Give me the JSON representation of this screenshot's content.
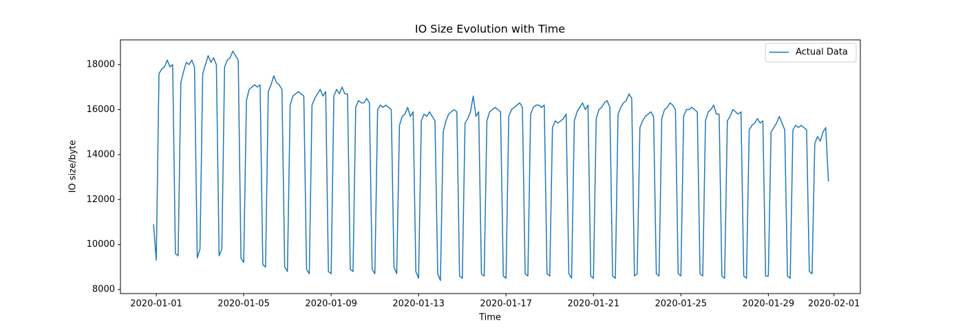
{
  "chart_data": {
    "type": "line",
    "title": "IO Size Evolution with Time",
    "x_label": "Time",
    "y_label": "IO size/byte",
    "xlim": [
      "2019-12-30 08:40",
      "2020-02-02 05:00"
    ],
    "xticks": [
      "2020-01-01",
      "2020-01-05",
      "2020-01-09",
      "2020-01-13",
      "2020-01-17",
      "2020-01-21",
      "2020-01-25",
      "2020-01-29",
      "2020-02-01"
    ],
    "ylim": [
      7820,
      19100
    ],
    "yticks": [
      8000,
      10000,
      12000,
      14000,
      16000,
      18000
    ],
    "legend": "upper right",
    "x": [
      "2019-12-31 21:00",
      "2020-01-01 00:00",
      "2020-01-01 03:00",
      "2020-01-01 06:00",
      "2020-01-01 09:00",
      "2020-01-01 12:00",
      "2020-01-01 15:00",
      "2020-01-01 18:00",
      "2020-01-01 21:00",
      "2020-01-02 00:00",
      "2020-01-02 03:00",
      "2020-01-02 06:00",
      "2020-01-02 09:00",
      "2020-01-02 12:00",
      "2020-01-02 15:00",
      "2020-01-02 18:00",
      "2020-01-02 21:00",
      "2020-01-03 00:00",
      "2020-01-03 03:00",
      "2020-01-03 06:00",
      "2020-01-03 09:00",
      "2020-01-03 12:00",
      "2020-01-03 15:00",
      "2020-01-03 18:00",
      "2020-01-03 21:00",
      "2020-01-04 00:00",
      "2020-01-04 03:00",
      "2020-01-04 06:00",
      "2020-01-04 09:00",
      "2020-01-04 12:00",
      "2020-01-04 15:00",
      "2020-01-04 18:00",
      "2020-01-04 21:00",
      "2020-01-05 00:00",
      "2020-01-05 03:00",
      "2020-01-05 06:00",
      "2020-01-05 09:00",
      "2020-01-05 12:00",
      "2020-01-05 15:00",
      "2020-01-05 18:00",
      "2020-01-05 21:00",
      "2020-01-06 00:00",
      "2020-01-06 03:00",
      "2020-01-06 06:00",
      "2020-01-06 09:00",
      "2020-01-06 12:00",
      "2020-01-06 15:00",
      "2020-01-06 18:00",
      "2020-01-06 21:00",
      "2020-01-07 00:00",
      "2020-01-07 03:00",
      "2020-01-07 06:00",
      "2020-01-07 09:00",
      "2020-01-07 12:00",
      "2020-01-07 15:00",
      "2020-01-07 18:00",
      "2020-01-07 21:00",
      "2020-01-08 00:00",
      "2020-01-08 03:00",
      "2020-01-08 06:00",
      "2020-01-08 09:00",
      "2020-01-08 12:00",
      "2020-01-08 15:00",
      "2020-01-08 18:00",
      "2020-01-08 21:00",
      "2020-01-09 00:00",
      "2020-01-09 03:00",
      "2020-01-09 06:00",
      "2020-01-09 09:00",
      "2020-01-09 12:00",
      "2020-01-09 15:00",
      "2020-01-09 18:00",
      "2020-01-09 21:00",
      "2020-01-10 00:00",
      "2020-01-10 03:00",
      "2020-01-10 06:00",
      "2020-01-10 09:00",
      "2020-01-10 12:00",
      "2020-01-10 15:00",
      "2020-01-10 18:00",
      "2020-01-10 21:00",
      "2020-01-11 00:00",
      "2020-01-11 03:00",
      "2020-01-11 06:00",
      "2020-01-11 09:00",
      "2020-01-11 12:00",
      "2020-01-11 15:00",
      "2020-01-11 18:00",
      "2020-01-11 21:00",
      "2020-01-12 00:00",
      "2020-01-12 03:00",
      "2020-01-12 06:00",
      "2020-01-12 09:00",
      "2020-01-12 12:00",
      "2020-01-12 15:00",
      "2020-01-12 18:00",
      "2020-01-12 21:00",
      "2020-01-13 00:00",
      "2020-01-13 03:00",
      "2020-01-13 06:00",
      "2020-01-13 09:00",
      "2020-01-13 12:00",
      "2020-01-13 15:00",
      "2020-01-13 18:00",
      "2020-01-13 21:00",
      "2020-01-14 00:00",
      "2020-01-14 03:00",
      "2020-01-14 06:00",
      "2020-01-14 09:00",
      "2020-01-14 12:00",
      "2020-01-14 15:00",
      "2020-01-14 18:00",
      "2020-01-14 21:00",
      "2020-01-15 00:00",
      "2020-01-15 03:00",
      "2020-01-15 06:00",
      "2020-01-15 09:00",
      "2020-01-15 12:00",
      "2020-01-15 15:00",
      "2020-01-15 18:00",
      "2020-01-15 21:00",
      "2020-01-16 00:00",
      "2020-01-16 03:00",
      "2020-01-16 06:00",
      "2020-01-16 09:00",
      "2020-01-16 12:00",
      "2020-01-16 15:00",
      "2020-01-16 18:00",
      "2020-01-16 21:00",
      "2020-01-17 00:00",
      "2020-01-17 03:00",
      "2020-01-17 06:00",
      "2020-01-17 09:00",
      "2020-01-17 12:00",
      "2020-01-17 15:00",
      "2020-01-17 18:00",
      "2020-01-17 21:00",
      "2020-01-18 00:00",
      "2020-01-18 03:00",
      "2020-01-18 06:00",
      "2020-01-18 09:00",
      "2020-01-18 12:00",
      "2020-01-18 15:00",
      "2020-01-18 18:00",
      "2020-01-18 21:00",
      "2020-01-19 00:00",
      "2020-01-19 03:00",
      "2020-01-19 06:00",
      "2020-01-19 09:00",
      "2020-01-19 12:00",
      "2020-01-19 15:00",
      "2020-01-19 18:00",
      "2020-01-19 21:00",
      "2020-01-20 00:00",
      "2020-01-20 03:00",
      "2020-01-20 06:00",
      "2020-01-20 09:00",
      "2020-01-20 12:00",
      "2020-01-20 15:00",
      "2020-01-20 18:00",
      "2020-01-20 21:00",
      "2020-01-21 00:00",
      "2020-01-21 03:00",
      "2020-01-21 06:00",
      "2020-01-21 09:00",
      "2020-01-21 12:00",
      "2020-01-21 15:00",
      "2020-01-21 18:00",
      "2020-01-21 21:00",
      "2020-01-22 00:00",
      "2020-01-22 03:00",
      "2020-01-22 06:00",
      "2020-01-22 09:00",
      "2020-01-22 12:00",
      "2020-01-22 15:00",
      "2020-01-22 18:00",
      "2020-01-22 21:00",
      "2020-01-23 00:00",
      "2020-01-23 03:00",
      "2020-01-23 06:00",
      "2020-01-23 09:00",
      "2020-01-23 12:00",
      "2020-01-23 15:00",
      "2020-01-23 18:00",
      "2020-01-23 21:00",
      "2020-01-24 00:00",
      "2020-01-24 03:00",
      "2020-01-24 06:00",
      "2020-01-24 09:00",
      "2020-01-24 12:00",
      "2020-01-24 15:00",
      "2020-01-24 18:00",
      "2020-01-24 21:00",
      "2020-01-25 00:00",
      "2020-01-25 03:00",
      "2020-01-25 06:00",
      "2020-01-25 09:00",
      "2020-01-25 12:00",
      "2020-01-25 15:00",
      "2020-01-25 18:00",
      "2020-01-25 21:00",
      "2020-01-26 00:00",
      "2020-01-26 03:00",
      "2020-01-26 06:00",
      "2020-01-26 09:00",
      "2020-01-26 12:00",
      "2020-01-26 15:00",
      "2020-01-26 18:00",
      "2020-01-26 21:00",
      "2020-01-27 00:00",
      "2020-01-27 03:00",
      "2020-01-27 06:00",
      "2020-01-27 09:00",
      "2020-01-27 12:00",
      "2020-01-27 15:00",
      "2020-01-27 18:00",
      "2020-01-27 21:00",
      "2020-01-28 00:00",
      "2020-01-28 03:00",
      "2020-01-28 06:00",
      "2020-01-28 09:00",
      "2020-01-28 12:00",
      "2020-01-28 15:00",
      "2020-01-28 18:00",
      "2020-01-28 21:00",
      "2020-01-29 00:00",
      "2020-01-29 03:00",
      "2020-01-29 06:00",
      "2020-01-29 09:00",
      "2020-01-29 12:00",
      "2020-01-29 15:00",
      "2020-01-29 18:00",
      "2020-01-29 21:00",
      "2020-01-30 00:00",
      "2020-01-30 03:00",
      "2020-01-30 06:00",
      "2020-01-30 09:00",
      "2020-01-30 12:00",
      "2020-01-30 15:00",
      "2020-01-30 18:00",
      "2020-01-30 21:00",
      "2020-01-31 00:00",
      "2020-01-31 03:00",
      "2020-01-31 06:00",
      "2020-01-31 09:00",
      "2020-01-31 12:00",
      "2020-01-31 15:00",
      "2020-01-31 18:00"
    ],
    "series": [
      {
        "name": "Actual Data",
        "color": "#1f77b4",
        "values": [
          10900,
          9300,
          17600,
          17800,
          17900,
          18200,
          17900,
          18000,
          9600,
          9500,
          17200,
          17700,
          18100,
          18000,
          18200,
          17900,
          9400,
          9800,
          17600,
          18000,
          18400,
          18100,
          18300,
          18000,
          9500,
          9800,
          17900,
          18200,
          18300,
          18600,
          18400,
          18200,
          9400,
          9200,
          16400,
          16900,
          17000,
          17100,
          17000,
          17100,
          9100,
          9000,
          16800,
          17100,
          17500,
          17200,
          17100,
          16900,
          9000,
          8800,
          16200,
          16600,
          16700,
          16800,
          16700,
          16600,
          8900,
          8700,
          16200,
          16500,
          16700,
          16900,
          16600,
          16800,
          8800,
          8700,
          16600,
          16900,
          16700,
          17000,
          16700,
          16700,
          8900,
          8800,
          16100,
          16400,
          16300,
          16300,
          16500,
          16300,
          8900,
          8700,
          16000,
          16200,
          16100,
          16200,
          16100,
          16000,
          9000,
          8700,
          15300,
          15700,
          15800,
          16100,
          15700,
          15900,
          8800,
          8500,
          15500,
          15800,
          15700,
          15900,
          15700,
          15500,
          8700,
          8400,
          15000,
          15500,
          15800,
          15900,
          16000,
          15900,
          8600,
          8500,
          15400,
          15600,
          15900,
          16600,
          15700,
          15900,
          8700,
          8600,
          15500,
          15900,
          16000,
          16100,
          16000,
          15900,
          8600,
          8500,
          15700,
          16000,
          16100,
          16200,
          16300,
          16100,
          8700,
          8600,
          15800,
          16100,
          16200,
          16200,
          16100,
          16200,
          8700,
          8600,
          15200,
          15500,
          15400,
          15500,
          15600,
          15800,
          8700,
          8500,
          15500,
          15900,
          16100,
          16300,
          16000,
          16200,
          8600,
          8500,
          15600,
          16000,
          16100,
          16300,
          16400,
          16100,
          8600,
          8500,
          15800,
          16100,
          16300,
          16400,
          16700,
          16500,
          8600,
          8700,
          15200,
          15500,
          15700,
          15800,
          15900,
          15700,
          8700,
          8600,
          15600,
          16000,
          16100,
          16300,
          16200,
          16000,
          8700,
          8600,
          15700,
          16000,
          16000,
          16100,
          16000,
          15900,
          8700,
          8600,
          15500,
          15900,
          16000,
          16200,
          15800,
          15800,
          8600,
          8500,
          15500,
          15700,
          16000,
          15900,
          15800,
          15900,
          8600,
          8500,
          15100,
          15300,
          15400,
          15600,
          15400,
          15500,
          8600,
          8600,
          15000,
          15200,
          15400,
          15700,
          15400,
          15100,
          8600,
          8500,
          15100,
          15300,
          15200,
          15300,
          15200,
          15100,
          8800,
          8700,
          14500,
          14800,
          14600,
          15000,
          15200,
          12800
        ]
      }
    ]
  }
}
